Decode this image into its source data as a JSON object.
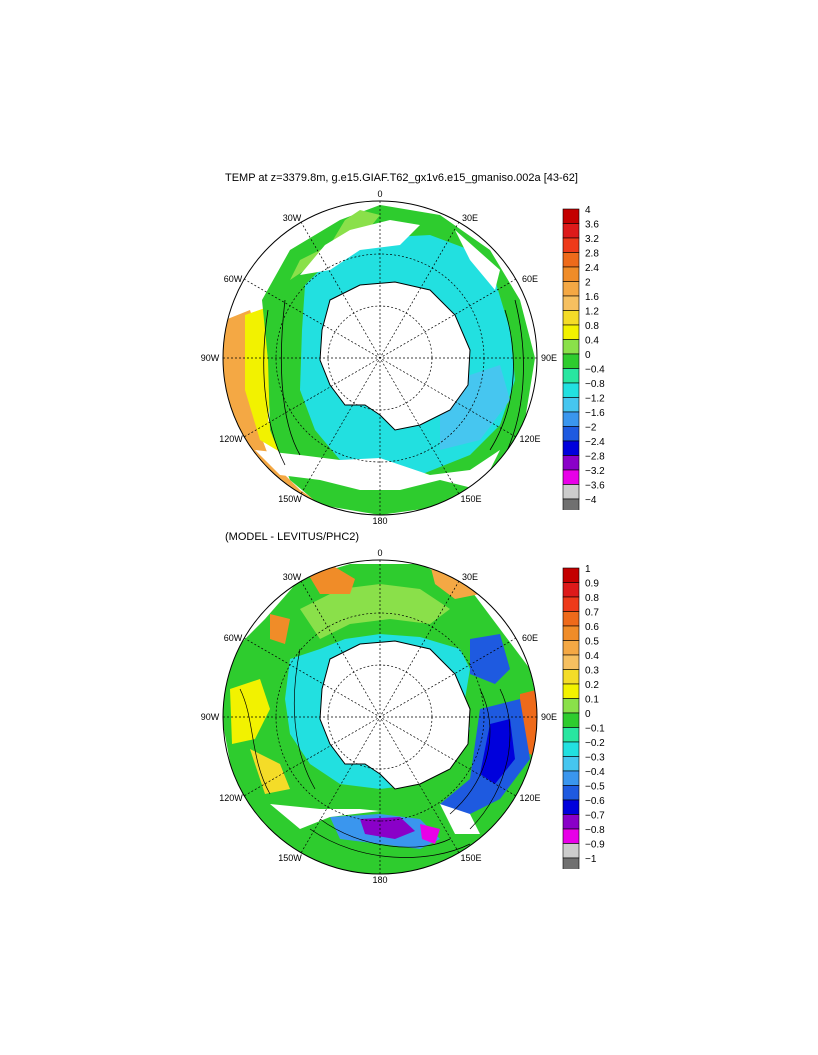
{
  "panels": [
    {
      "title": "TEMP at z=3379.8m, g.e15.GIAF.T62_gx1v6.e15_gmaniso.002a [43-62]",
      "lon_labels": {
        "lon_0": "0",
        "lon_30e": "30E",
        "lon_60e": "60E",
        "lon_90e": "90E",
        "lon_120e": "120E",
        "lon_150e": "150E",
        "lon_180": "180",
        "lon_150w": "150W",
        "lon_120w": "120W",
        "lon_90w": "90W",
        "lon_60w": "60W",
        "lon_30w": "30W"
      },
      "colorbar": {
        "levels": [
          "4",
          "3.6",
          "3.2",
          "2.8",
          "2.4",
          "2",
          "1.6",
          "1.2",
          "0.8",
          "0.4",
          "0",
          "−0.4",
          "−0.8",
          "−1.2",
          "−1.6",
          "−2",
          "−2.4",
          "−2.8",
          "−3.2",
          "−3.6",
          "−4"
        ],
        "colors": [
          "#c40000",
          "#dd1a1a",
          "#ee3a1a",
          "#ee6a1a",
          "#f08c28",
          "#f4a844",
          "#f6c060",
          "#f4dc28",
          "#f2f200",
          "#8ae04a",
          "#2ecc2e",
          "#28e6a0",
          "#22e0e0",
          "#46c6f0",
          "#3a96ee",
          "#1e5ae0",
          "#0000dc",
          "#8a00c8",
          "#e800e8",
          "#cccccc",
          "#707070"
        ]
      }
    },
    {
      "title": "(MODEL - LEVITUS/PHC2)",
      "lon_labels": {
        "lon_0": "0",
        "lon_30e": "30E",
        "lon_60e": "60E",
        "lon_90e": "90E",
        "lon_120e": "120E",
        "lon_150e": "150E",
        "lon_180": "180",
        "lon_150w": "150W",
        "lon_120w": "120W",
        "lon_90w": "90W",
        "lon_60w": "60W",
        "lon_30w": "30W"
      },
      "colorbar": {
        "levels": [
          "1",
          "0.9",
          "0.8",
          "0.7",
          "0.6",
          "0.5",
          "0.4",
          "0.3",
          "0.2",
          "0.1",
          "0",
          "−0.1",
          "−0.2",
          "−0.3",
          "−0.4",
          "−0.5",
          "−0.6",
          "−0.7",
          "−0.8",
          "−0.9",
          "−1"
        ],
        "colors": [
          "#c40000",
          "#dd1a1a",
          "#ee3a1a",
          "#ee6a1a",
          "#f08c28",
          "#f4a844",
          "#f6c060",
          "#f4dc28",
          "#f2f200",
          "#8ae04a",
          "#2ecc2e",
          "#28e6a0",
          "#22e0e0",
          "#46c6f0",
          "#3a96ee",
          "#1e5ae0",
          "#0000dc",
          "#8a00c8",
          "#e800e8",
          "#cccccc",
          "#707070"
        ]
      }
    }
  ]
}
